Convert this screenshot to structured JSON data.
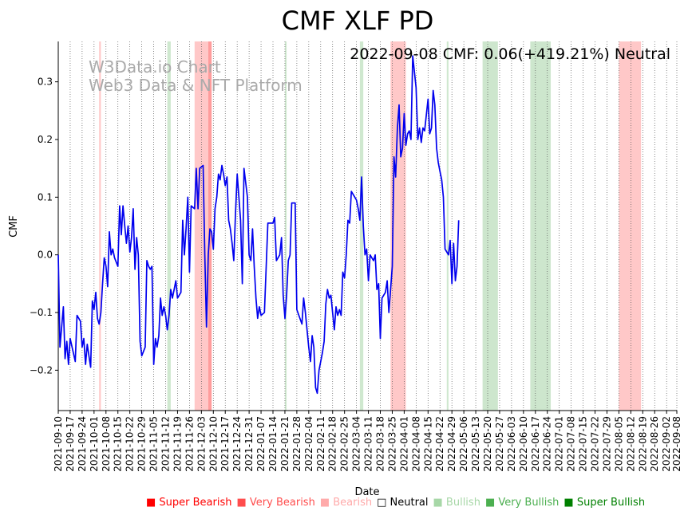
{
  "chart_data": {
    "type": "line",
    "title": "CMF XLF PD",
    "info_text": "2022-09-08 CMF: 0.06(+419.21%) Neutral",
    "watermark": [
      "W3Data.io Chart",
      "Web3 Data & NFT Platform"
    ],
    "xlabel": "Date",
    "ylabel": "CMF",
    "xlim": [
      "2021-09-10",
      "2022-09-08"
    ],
    "ylim": [
      -0.27,
      0.37
    ],
    "yticks": [
      -0.2,
      -0.1,
      0.0,
      0.1,
      0.2,
      0.3
    ],
    "ytick_labels": [
      "−0.2",
      "−0.1",
      "0.0",
      "0.1",
      "0.2",
      "0.3"
    ],
    "xtick_labels": [
      "2021-09-10",
      "2021-09-17",
      "2021-09-24",
      "2021-10-01",
      "2021-10-08",
      "2021-10-15",
      "2021-10-22",
      "2021-10-29",
      "2021-11-05",
      "2021-11-12",
      "2021-11-19",
      "2021-11-26",
      "2021-12-03",
      "2021-12-10",
      "2021-12-17",
      "2021-12-24",
      "2021-12-31",
      "2022-01-07",
      "2022-01-14",
      "2022-01-21",
      "2022-01-28",
      "2022-02-04",
      "2022-02-11",
      "2022-02-18",
      "2022-02-25",
      "2022-03-04",
      "2022-03-11",
      "2022-03-18",
      "2022-03-25",
      "2022-04-01",
      "2022-04-08",
      "2022-04-15",
      "2022-04-22",
      "2022-04-29",
      "2022-05-06",
      "2022-05-13",
      "2022-05-20",
      "2022-05-27",
      "2022-06-03",
      "2022-06-10",
      "2022-06-17",
      "2022-06-24",
      "2022-07-01",
      "2022-07-08",
      "2022-07-15",
      "2022-07-22",
      "2022-07-29",
      "2022-08-05",
      "2022-08-12",
      "2022-08-19",
      "2022-08-26",
      "2022-09-02",
      "2022-09-08"
    ],
    "grid": "vertical dotted",
    "line_color": "#0000ee",
    "series": [
      {
        "values": [
          [
            "2021-09-10",
            0.0
          ],
          [
            "2021-09-11",
            -0.16
          ],
          [
            "2021-09-13",
            -0.09
          ],
          [
            "2021-09-14",
            -0.18
          ],
          [
            "2021-09-15",
            -0.15
          ],
          [
            "2021-09-16",
            -0.19
          ],
          [
            "2021-09-17",
            -0.145
          ],
          [
            "2021-09-20",
            -0.185
          ],
          [
            "2021-09-21",
            -0.105
          ],
          [
            "2021-09-23",
            -0.115
          ],
          [
            "2021-09-24",
            -0.16
          ],
          [
            "2021-09-25",
            -0.145
          ],
          [
            "2021-09-26",
            -0.19
          ],
          [
            "2021-09-27",
            -0.155
          ],
          [
            "2021-09-28",
            -0.175
          ],
          [
            "2021-09-29",
            -0.195
          ],
          [
            "2021-09-30",
            -0.08
          ],
          [
            "2021-10-01",
            -0.095
          ],
          [
            "2021-10-02",
            -0.065
          ],
          [
            "2021-10-03",
            -0.11
          ],
          [
            "2021-10-04",
            -0.12
          ],
          [
            "2021-10-05",
            -0.1
          ],
          [
            "2021-10-06",
            -0.05
          ],
          [
            "2021-10-07",
            -0.005
          ],
          [
            "2021-10-08",
            -0.02
          ],
          [
            "2021-10-09",
            -0.055
          ],
          [
            "2021-10-10",
            0.04
          ],
          [
            "2021-10-11",
            0.0
          ],
          [
            "2021-10-12",
            0.01
          ],
          [
            "2021-10-13",
            -0.005
          ],
          [
            "2021-10-15",
            -0.02
          ],
          [
            "2021-10-16",
            0.085
          ],
          [
            "2021-10-17",
            0.035
          ],
          [
            "2021-10-18",
            0.085
          ],
          [
            "2021-10-19",
            0.05
          ],
          [
            "2021-10-20",
            0.02
          ],
          [
            "2021-10-21",
            0.05
          ],
          [
            "2021-10-22",
            0.005
          ],
          [
            "2021-10-23",
            0.03
          ],
          [
            "2021-10-24",
            0.08
          ],
          [
            "2021-10-25",
            -0.025
          ],
          [
            "2021-10-26",
            0.03
          ],
          [
            "2021-10-27",
            0.0
          ],
          [
            "2021-10-28",
            -0.15
          ],
          [
            "2021-10-29",
            -0.175
          ],
          [
            "2021-10-31",
            -0.16
          ],
          [
            "2021-11-01",
            -0.01
          ],
          [
            "2021-11-02",
            -0.02
          ],
          [
            "2021-11-03",
            -0.025
          ],
          [
            "2021-11-04",
            -0.02
          ],
          [
            "2021-11-05",
            -0.19
          ],
          [
            "2021-11-06",
            -0.145
          ],
          [
            "2021-11-07",
            -0.16
          ],
          [
            "2021-11-08",
            -0.14
          ],
          [
            "2021-11-09",
            -0.075
          ],
          [
            "2021-11-10",
            -0.105
          ],
          [
            "2021-11-11",
            -0.09
          ],
          [
            "2021-11-12",
            -0.105
          ],
          [
            "2021-11-13",
            -0.13
          ],
          [
            "2021-11-14",
            -0.105
          ],
          [
            "2021-11-15",
            -0.06
          ],
          [
            "2021-11-16",
            -0.075
          ],
          [
            "2021-11-17",
            -0.06
          ],
          [
            "2021-11-18",
            -0.045
          ],
          [
            "2021-11-19",
            -0.075
          ],
          [
            "2021-11-21",
            -0.065
          ],
          [
            "2021-11-22",
            0.06
          ],
          [
            "2021-11-23",
            0.0
          ],
          [
            "2021-11-24",
            0.045
          ],
          [
            "2021-11-25",
            0.1
          ],
          [
            "2021-11-26",
            -0.03
          ],
          [
            "2021-11-27",
            0.085
          ],
          [
            "2021-11-29",
            0.08
          ],
          [
            "2021-11-30",
            0.15
          ],
          [
            "2021-12-01",
            0.08
          ],
          [
            "2021-12-02",
            0.15
          ],
          [
            "2021-12-04",
            0.155
          ],
          [
            "2021-12-05",
            0.0
          ],
          [
            "2021-12-06",
            -0.125
          ],
          [
            "2021-12-07",
            0.0
          ],
          [
            "2021-12-08",
            0.045
          ],
          [
            "2021-12-09",
            0.04
          ],
          [
            "2021-12-10",
            0.01
          ],
          [
            "2021-12-11",
            0.08
          ],
          [
            "2021-12-12",
            0.1
          ],
          [
            "2021-12-13",
            0.14
          ],
          [
            "2021-12-14",
            0.13
          ],
          [
            "2021-12-15",
            0.155
          ],
          [
            "2021-12-16",
            0.14
          ],
          [
            "2021-12-17",
            0.12
          ],
          [
            "2021-12-18",
            0.135
          ],
          [
            "2021-12-19",
            0.06
          ],
          [
            "2021-12-20",
            0.045
          ],
          [
            "2021-12-21",
            0.02
          ],
          [
            "2021-12-22",
            -0.01
          ],
          [
            "2021-12-23",
            0.07
          ],
          [
            "2021-12-24",
            0.14
          ],
          [
            "2021-12-25",
            0.1
          ],
          [
            "2021-12-26",
            0.06
          ],
          [
            "2021-12-27",
            -0.05
          ],
          [
            "2021-12-28",
            0.15
          ],
          [
            "2021-12-30",
            0.1
          ],
          [
            "2021-12-31",
            0.0
          ],
          [
            "2022-01-01",
            -0.01
          ],
          [
            "2022-01-02",
            0.045
          ],
          [
            "2022-01-03",
            -0.02
          ],
          [
            "2022-01-04",
            -0.075
          ],
          [
            "2022-01-05",
            -0.11
          ],
          [
            "2022-01-06",
            -0.09
          ],
          [
            "2022-01-07",
            -0.105
          ],
          [
            "2022-01-09",
            -0.1
          ],
          [
            "2022-01-11",
            0.055
          ],
          [
            "2022-01-14",
            0.055
          ],
          [
            "2022-01-15",
            0.065
          ],
          [
            "2022-01-16",
            -0.01
          ],
          [
            "2022-01-18",
            0.0
          ],
          [
            "2022-01-19",
            0.03
          ],
          [
            "2022-01-20",
            -0.07
          ],
          [
            "2022-01-21",
            -0.11
          ],
          [
            "2022-01-22",
            -0.07
          ],
          [
            "2022-01-23",
            -0.01
          ],
          [
            "2022-01-24",
            0.0
          ],
          [
            "2022-01-25",
            0.09
          ],
          [
            "2022-01-27",
            0.09
          ],
          [
            "2022-01-28",
            -0.095
          ],
          [
            "2022-01-31",
            -0.12
          ],
          [
            "2022-02-01",
            -0.075
          ],
          [
            "2022-02-02",
            -0.1
          ],
          [
            "2022-02-04",
            -0.16
          ],
          [
            "2022-02-05",
            -0.185
          ],
          [
            "2022-02-06",
            -0.14
          ],
          [
            "2022-02-07",
            -0.16
          ],
          [
            "2022-02-08",
            -0.23
          ],
          [
            "2022-02-09",
            -0.24
          ],
          [
            "2022-02-10",
            -0.2
          ],
          [
            "2022-02-12",
            -0.17
          ],
          [
            "2022-02-13",
            -0.15
          ],
          [
            "2022-02-14",
            -0.085
          ],
          [
            "2022-02-15",
            -0.06
          ],
          [
            "2022-02-16",
            -0.075
          ],
          [
            "2022-02-17",
            -0.07
          ],
          [
            "2022-02-18",
            -0.1
          ],
          [
            "2022-02-19",
            -0.13
          ],
          [
            "2022-02-20",
            -0.09
          ],
          [
            "2022-02-21",
            -0.105
          ],
          [
            "2022-02-22",
            -0.095
          ],
          [
            "2022-02-23",
            -0.105
          ],
          [
            "2022-02-24",
            -0.03
          ],
          [
            "2022-02-25",
            -0.04
          ],
          [
            "2022-02-26",
            0.0
          ],
          [
            "2022-02-27",
            0.06
          ],
          [
            "2022-02-28",
            0.055
          ],
          [
            "2022-03-01",
            0.11
          ],
          [
            "2022-03-03",
            0.1
          ],
          [
            "2022-03-04",
            0.095
          ],
          [
            "2022-03-05",
            0.08
          ],
          [
            "2022-03-06",
            0.06
          ],
          [
            "2022-03-07",
            0.135
          ],
          [
            "2022-03-08",
            0.05
          ],
          [
            "2022-03-09",
            0.0
          ],
          [
            "2022-03-10",
            0.01
          ],
          [
            "2022-03-11",
            -0.045
          ],
          [
            "2022-03-12",
            0.0
          ],
          [
            "2022-03-13",
            -0.005
          ],
          [
            "2022-03-14",
            -0.01
          ],
          [
            "2022-03-15",
            0.0
          ],
          [
            "2022-03-16",
            -0.06
          ],
          [
            "2022-03-17",
            -0.05
          ],
          [
            "2022-03-18",
            -0.145
          ],
          [
            "2022-03-19",
            -0.075
          ],
          [
            "2022-03-21",
            -0.065
          ],
          [
            "2022-03-22",
            -0.045
          ],
          [
            "2022-03-23",
            -0.1
          ],
          [
            "2022-03-25",
            -0.02
          ],
          [
            "2022-03-26",
            0.17
          ],
          [
            "2022-03-27",
            0.135
          ],
          [
            "2022-03-28",
            0.22
          ],
          [
            "2022-03-29",
            0.26
          ],
          [
            "2022-03-30",
            0.17
          ],
          [
            "2022-03-31",
            0.185
          ],
          [
            "2022-04-01",
            0.245
          ],
          [
            "2022-04-02",
            0.19
          ],
          [
            "2022-04-03",
            0.21
          ],
          [
            "2022-04-04",
            0.215
          ],
          [
            "2022-04-05",
            0.2
          ],
          [
            "2022-04-06",
            0.345
          ],
          [
            "2022-04-08",
            0.29
          ],
          [
            "2022-04-09",
            0.2
          ],
          [
            "2022-04-10",
            0.22
          ],
          [
            "2022-04-11",
            0.195
          ],
          [
            "2022-04-12",
            0.22
          ],
          [
            "2022-04-13",
            0.215
          ],
          [
            "2022-04-15",
            0.27
          ],
          [
            "2022-04-16",
            0.21
          ],
          [
            "2022-04-17",
            0.22
          ],
          [
            "2022-04-18",
            0.285
          ],
          [
            "2022-04-19",
            0.26
          ],
          [
            "2022-04-20",
            0.185
          ],
          [
            "2022-04-21",
            0.16
          ],
          [
            "2022-04-22",
            0.145
          ],
          [
            "2022-04-23",
            0.13
          ],
          [
            "2022-04-24",
            0.1
          ],
          [
            "2022-04-25",
            0.01
          ],
          [
            "2022-04-26",
            0.005
          ],
          [
            "2022-04-27",
            0.0
          ],
          [
            "2022-04-28",
            0.025
          ],
          [
            "2022-04-29",
            -0.05
          ],
          [
            "2022-04-30",
            0.02
          ],
          [
            "2022-05-01",
            -0.045
          ],
          [
            "2022-05-02",
            -0.02
          ],
          [
            "2022-05-03",
            0.06
          ]
        ]
      }
    ],
    "regions": [
      {
        "start": "2021-10-04",
        "end": "2021-10-05",
        "class": "Bearish"
      },
      {
        "start": "2021-11-13",
        "end": "2021-11-15",
        "class": "Bullish"
      },
      {
        "start": "2021-11-29",
        "end": "2021-12-07",
        "class": "Bearish"
      },
      {
        "start": "2021-12-07",
        "end": "2021-12-09",
        "class": "Very Bearish"
      },
      {
        "start": "2022-01-21",
        "end": "2022-01-22",
        "class": "Bullish"
      },
      {
        "start": "2022-03-06",
        "end": "2022-03-08",
        "class": "Bullish"
      },
      {
        "start": "2022-03-24",
        "end": "2022-04-02",
        "class": "Bearish"
      },
      {
        "start": "2022-04-26",
        "end": "2022-04-27",
        "class": "Bullish"
      },
      {
        "start": "2022-05-17",
        "end": "2022-05-26",
        "class": "Very Bullish"
      },
      {
        "start": "2022-06-14",
        "end": "2022-06-26",
        "class": "Very Bullish"
      },
      {
        "start": "2022-08-05",
        "end": "2022-08-18",
        "class": "Bearish"
      }
    ],
    "legend": {
      "placement": "bottom-right",
      "entries": [
        {
          "label": "Super Bearish",
          "color": "#ff0000",
          "marker": "■"
        },
        {
          "label": "Very Bearish",
          "color": "#ff4d4d",
          "marker": "■"
        },
        {
          "label": "Bearish",
          "color": "#ffaaaa",
          "marker": "■"
        },
        {
          "label": "Neutral",
          "color": "#000000",
          "marker": "□"
        },
        {
          "label": "Bullish",
          "color": "#a7d7a7",
          "marker": "■"
        },
        {
          "label": "Very Bullish",
          "color": "#4caf50",
          "marker": "■"
        },
        {
          "label": "Super Bullish",
          "color": "#008000",
          "marker": "■"
        }
      ]
    },
    "region_colors": {
      "Bearish": "#ffc8c8",
      "Very Bearish": "#ff9c9c",
      "Bullish": "#cfe8cf",
      "Very Bullish": "#cde6cd"
    }
  }
}
